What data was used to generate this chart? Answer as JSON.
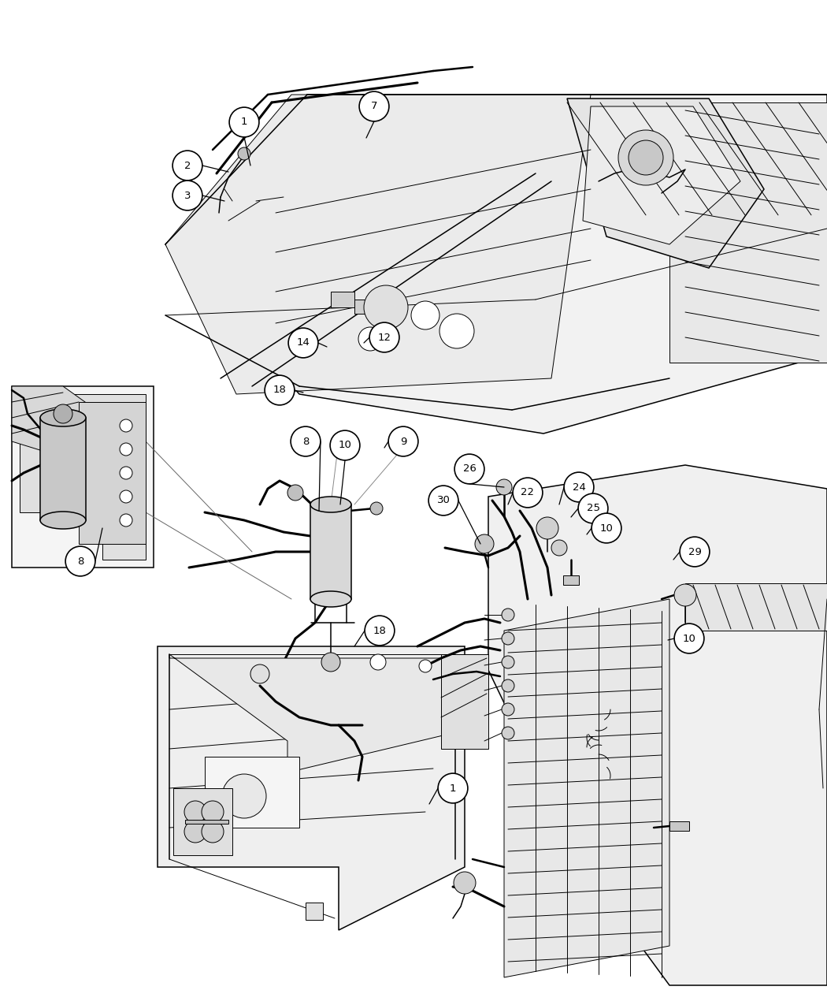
{
  "background_color": "#ffffff",
  "figure_width": 10.5,
  "figure_height": 12.75,
  "dpi": 100,
  "callouts": [
    {
      "num": "1",
      "bx": 0.298,
      "by": 0.924
    },
    {
      "num": "7",
      "bx": 0.455,
      "by": 0.924
    },
    {
      "num": "2",
      "bx": 0.228,
      "by": 0.88
    },
    {
      "num": "3",
      "bx": 0.228,
      "by": 0.848
    },
    {
      "num": "14",
      "bx": 0.368,
      "by": 0.715
    },
    {
      "num": "12",
      "bx": 0.465,
      "by": 0.706
    },
    {
      "num": "18",
      "bx": 0.338,
      "by": 0.657
    },
    {
      "num": "8",
      "bx": 0.37,
      "by": 0.603
    },
    {
      "num": "10",
      "bx": 0.418,
      "by": 0.6
    },
    {
      "num": "9",
      "bx": 0.488,
      "by": 0.605
    },
    {
      "num": "8",
      "bx": 0.098,
      "by": 0.538
    },
    {
      "num": "26",
      "bx": 0.568,
      "by": 0.582
    },
    {
      "num": "30",
      "bx": 0.535,
      "by": 0.546
    },
    {
      "num": "22",
      "bx": 0.638,
      "by": 0.548
    },
    {
      "num": "24",
      "bx": 0.7,
      "by": 0.554
    },
    {
      "num": "25",
      "bx": 0.718,
      "by": 0.53
    },
    {
      "num": "10",
      "bx": 0.735,
      "by": 0.505
    },
    {
      "num": "29",
      "bx": 0.84,
      "by": 0.48
    },
    {
      "num": "18",
      "bx": 0.458,
      "by": 0.408
    },
    {
      "num": "1",
      "bx": 0.548,
      "by": 0.305
    },
    {
      "num": "10",
      "bx": 0.835,
      "by": 0.358
    }
  ],
  "bubble_r": 0.018,
  "font_size": 9.5
}
